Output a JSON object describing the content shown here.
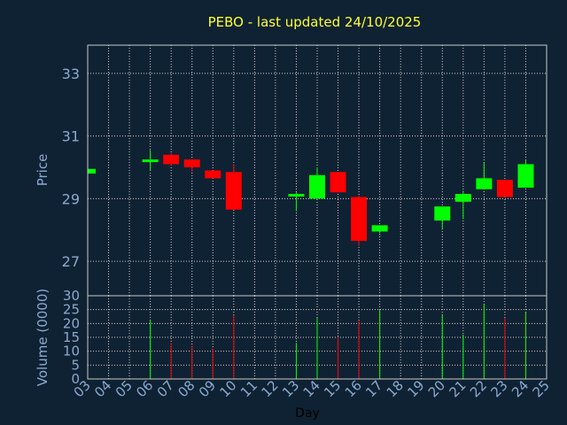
{
  "chart_data": [
    {
      "type": "candlestick",
      "title": "PEBO - last updated 24/10/2025",
      "ylabel": "Price",
      "ylim": [
        25.9,
        33.9
      ],
      "yticks": [
        "27",
        "29",
        "31",
        "33"
      ],
      "grid": true,
      "colors": {
        "up": "#00ff00",
        "down": "#ff0000"
      },
      "days": [
        "03",
        "06",
        "07",
        "08",
        "09",
        "10",
        "13",
        "14",
        "15",
        "16",
        "17",
        "20",
        "21",
        "22",
        "23",
        "24"
      ],
      "open": [
        29.8,
        30.25,
        30.4,
        30.25,
        29.9,
        29.85,
        29.1,
        29.0,
        29.85,
        29.05,
        27.95,
        28.3,
        28.9,
        29.3,
        29.6,
        29.35
      ],
      "close": [
        29.95,
        30.25,
        30.1,
        30.0,
        29.65,
        28.65,
        29.15,
        29.75,
        29.2,
        27.65,
        28.15,
        28.75,
        29.15,
        29.65,
        29.05,
        30.1
      ],
      "high": [
        29.95,
        30.55,
        30.45,
        30.25,
        29.9,
        30.1,
        29.2,
        30.0,
        29.85,
        29.1,
        28.15,
        28.75,
        29.25,
        30.15,
        29.6,
        30.25
      ],
      "low": [
        29.8,
        29.9,
        30.05,
        29.85,
        29.65,
        28.65,
        28.6,
        29.0,
        29.2,
        27.5,
        27.9,
        28.05,
        28.35,
        29.3,
        29.05,
        29.35
      ]
    },
    {
      "type": "bar",
      "ylabel": "Volume (0000)",
      "xlabel": "Day",
      "ylim": [
        0,
        30
      ],
      "yticks": [
        "0",
        "5",
        "10",
        "15",
        "20",
        "25",
        "30"
      ],
      "xticks": [
        "03",
        "04",
        "05",
        "06",
        "07",
        "08",
        "09",
        "10",
        "11",
        "12",
        "13",
        "14",
        "15",
        "16",
        "17",
        "18",
        "19",
        "20",
        "21",
        "22",
        "23",
        "24",
        "25"
      ],
      "days": [
        "03",
        "06",
        "07",
        "08",
        "09",
        "10",
        "13",
        "14",
        "15",
        "16",
        "17",
        "20",
        "21",
        "22",
        "23",
        "24"
      ],
      "values": [
        0,
        21,
        13,
        12,
        11,
        23,
        13,
        22,
        15,
        21,
        25,
        23,
        16,
        27,
        22,
        24
      ]
    }
  ]
}
